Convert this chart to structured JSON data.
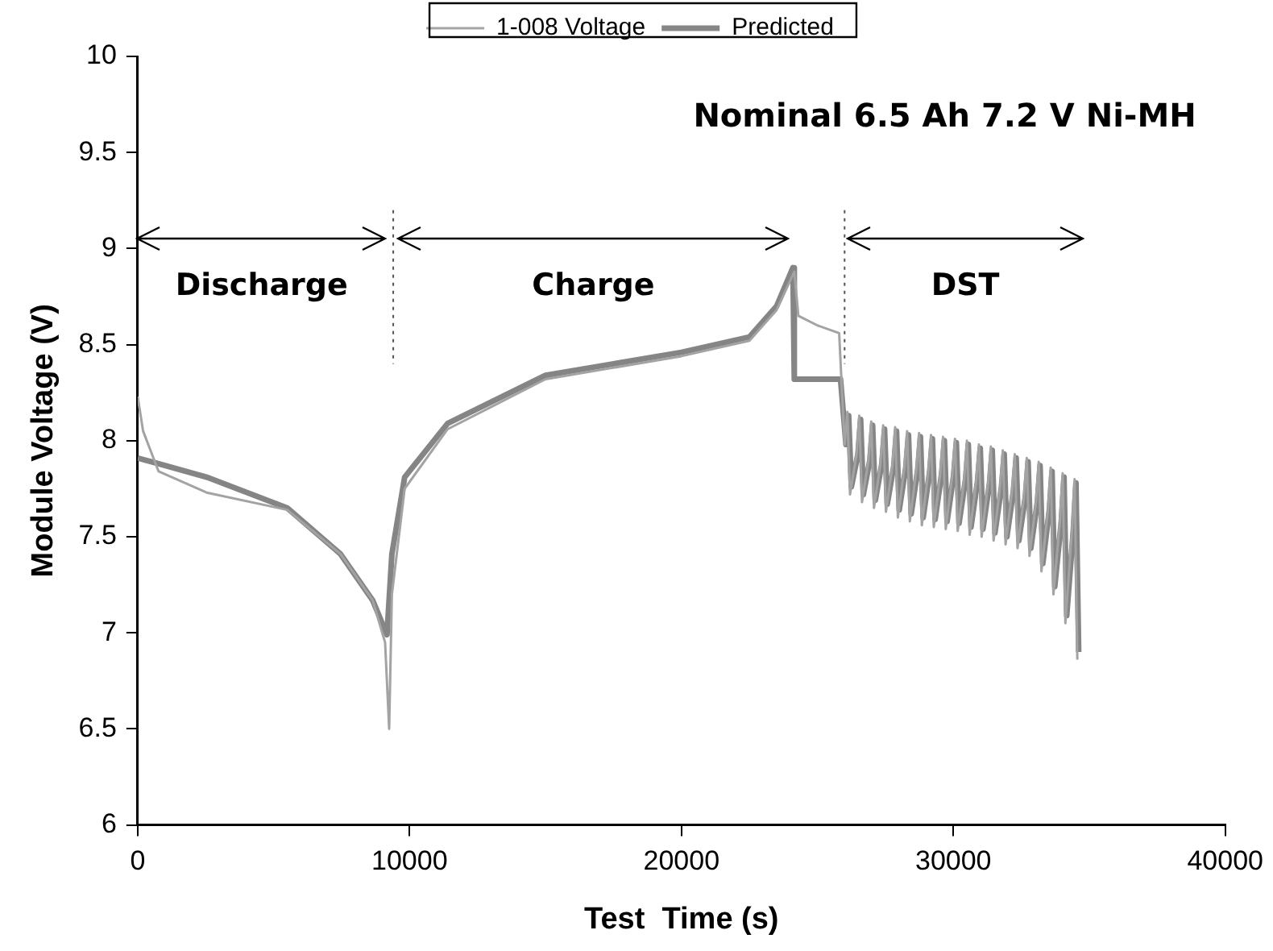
{
  "chart_data": {
    "type": "line",
    "xlabel": "Test  Time (s)",
    "ylabel": "Module Voltage (V)",
    "xlim": [
      0,
      40000
    ],
    "xticks": [
      0,
      10000,
      20000,
      30000,
      40000
    ],
    "ylim": [
      6,
      10
    ],
    "yticks": [
      6,
      6.5,
      7,
      7.5,
      8,
      8.5,
      9,
      9.5,
      10
    ],
    "grid": false,
    "legend": "top",
    "marker": "none",
    "line_style": "solid",
    "annotations": [
      "Nominal 6.5 Ah 7.2 V Ni-MH",
      "Discharge",
      "Charge",
      "DST"
    ],
    "ref_lines": [
      {
        "axis": "x",
        "value": 9400,
        "line_style": "dotted"
      },
      {
        "axis": "x",
        "value": 26000,
        "line_style": "dotted"
      }
    ],
    "series": [
      {
        "name": "1-008 Voltage",
        "color": "#a3a3a3",
        "x": [
          0,
          200,
          770,
          2540,
          5500,
          7460,
          8640,
          9100,
          9250,
          9350,
          9820,
          11400,
          15000,
          20000,
          22500,
          23500,
          24150,
          24300,
          25000,
          25800,
          26000,
          26100,
          26200,
          26440,
          26540,
          26640,
          26880,
          26980,
          27080,
          27320,
          27420,
          27520,
          27760,
          27860,
          27960,
          28200,
          28300,
          28400,
          28640,
          28740,
          28840,
          29080,
          29180,
          29280,
          29520,
          29620,
          29720,
          29960,
          30060,
          30160,
          30400,
          30500,
          30600,
          30840,
          30940,
          31040,
          31280,
          31380,
          31480,
          31720,
          31820,
          31920,
          32160,
          32260,
          32360,
          32600,
          32700,
          32800,
          33040,
          33140,
          33240,
          33480,
          33580,
          33680,
          33920,
          34020,
          34120,
          34360,
          34460,
          34560
        ],
        "values": [
          8.23,
          8.05,
          7.84,
          7.73,
          7.64,
          7.41,
          7.17,
          6.95,
          6.5,
          7.2,
          7.75,
          8.06,
          8.32,
          8.44,
          8.52,
          8.68,
          8.88,
          8.65,
          8.6,
          8.56,
          7.98,
          8.15,
          7.72,
          7.93,
          8.13,
          7.68,
          7.9,
          8.1,
          7.65,
          7.88,
          8.08,
          7.63,
          7.87,
          8.07,
          7.6,
          7.86,
          8.05,
          7.58,
          7.85,
          8.04,
          7.56,
          7.84,
          8.03,
          7.55,
          7.83,
          8.02,
          7.54,
          7.82,
          8.01,
          7.53,
          7.8,
          8,
          7.51,
          7.79,
          7.98,
          7.5,
          7.78,
          7.97,
          7.48,
          7.76,
          7.95,
          7.46,
          7.74,
          7.93,
          7.44,
          7.71,
          7.91,
          7.4,
          7.68,
          7.89,
          7.32,
          7.64,
          7.86,
          7.2,
          7.58,
          7.83,
          7.05,
          7.53,
          7.8,
          6.86
        ]
      },
      {
        "name": "Predicted",
        "color": "#858585",
        "x": [
          0,
          770,
          2540,
          5500,
          7460,
          8640,
          9170,
          9350,
          9820,
          11400,
          15000,
          20000,
          22500,
          23500,
          24100,
          24150,
          25850,
          26050,
          26150,
          26250,
          26490,
          26590,
          26690,
          26930,
          27030,
          27130,
          27370,
          27470,
          27570,
          27810,
          27910,
          28010,
          28250,
          28350,
          28450,
          28690,
          28790,
          28890,
          29130,
          29230,
          29330,
          29570,
          29670,
          29770,
          30010,
          30110,
          30210,
          30450,
          30550,
          30650,
          30890,
          30990,
          31090,
          31330,
          31430,
          31530,
          31770,
          31870,
          31970,
          32210,
          32310,
          32410,
          32650,
          32750,
          32850,
          33090,
          33190,
          33290,
          33530,
          33630,
          33730,
          33970,
          34070,
          34170,
          34410,
          34510,
          34610
        ],
        "values": [
          7.91,
          7.88,
          7.81,
          7.65,
          7.41,
          7.17,
          6.99,
          7.41,
          7.81,
          8.09,
          8.34,
          8.46,
          8.54,
          8.7,
          8.9,
          8.32,
          8.32,
          7.98,
          8.13,
          7.76,
          7.93,
          8.11,
          7.72,
          7.9,
          8.08,
          7.69,
          7.88,
          8.06,
          7.67,
          7.87,
          8.05,
          7.64,
          7.86,
          8.03,
          7.62,
          7.85,
          8.02,
          7.6,
          7.84,
          8.01,
          7.59,
          7.83,
          8,
          7.58,
          7.82,
          7.99,
          7.57,
          7.8,
          7.98,
          7.55,
          7.79,
          7.96,
          7.54,
          7.78,
          7.95,
          7.52,
          7.76,
          7.93,
          7.5,
          7.74,
          7.91,
          7.48,
          7.71,
          7.89,
          7.44,
          7.68,
          7.87,
          7.36,
          7.64,
          7.84,
          7.24,
          7.58,
          7.81,
          7.09,
          7.53,
          7.78,
          6.9
        ]
      }
    ]
  }
}
